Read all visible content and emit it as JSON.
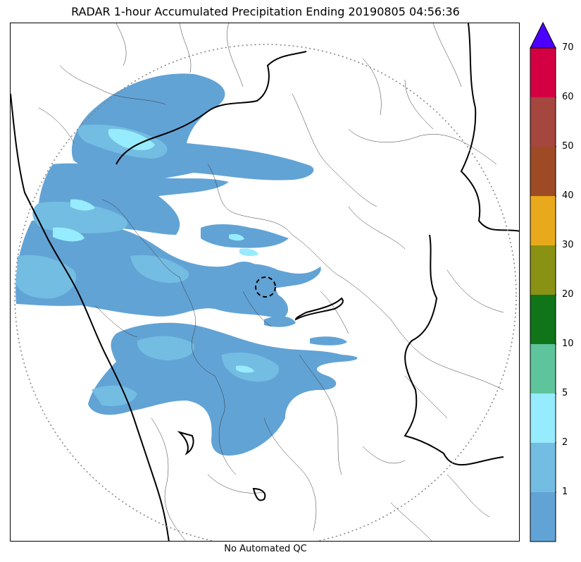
{
  "title": "RADAR 1-hour Accumulated Precipitation Ending 20190805 04:56:36",
  "footer": "No Automated QC",
  "colorbar": {
    "levels": [
      {
        "color": "#62a3d5",
        "label": "1"
      },
      {
        "color": "#74bde2",
        "label": "2"
      },
      {
        "color": "#96ecfd",
        "label": "5"
      },
      {
        "color": "#5ec49c",
        "label": "10"
      },
      {
        "color": "#0f7518",
        "label": "20"
      },
      {
        "color": "#8a9214",
        "label": "30"
      },
      {
        "color": "#e9a91c",
        "label": "40"
      },
      {
        "color": "#9e4b25",
        "label": "50"
      },
      {
        "color": "#a5463f",
        "label": "60"
      },
      {
        "color": "#d40044",
        "label": "70"
      }
    ],
    "extend_color": "#4b00ff"
  },
  "legend_colors": {
    "light": "#62a3d5",
    "medium": "#74bde2",
    "cyan": "#96ecfd",
    "coast": "#000000",
    "range_ring": "#808080"
  }
}
